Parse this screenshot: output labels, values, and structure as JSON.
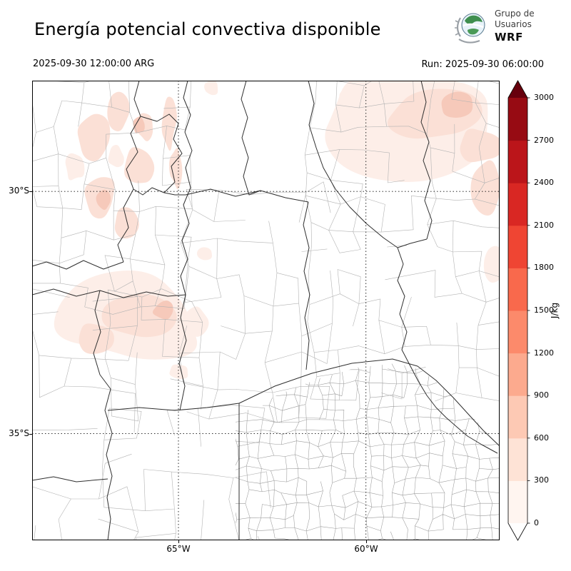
{
  "header": {
    "title": "Energía potencial convectiva disponible",
    "valid_time": "2025-09-30 12:00:00 ARG",
    "run_label": "Run: 2025-09-30 06:00:00"
  },
  "logo": {
    "line1": "Grupo de",
    "line2": "Usuarios",
    "line3": "WRF"
  },
  "axes": {
    "lat_ticks": [
      {
        "label": "30°S",
        "frac": 0.241
      },
      {
        "label": "35°S",
        "frac": 0.768
      }
    ],
    "lon_ticks": [
      {
        "label": "65°W",
        "frac": 0.313
      },
      {
        "label": "60°W",
        "frac": 0.714
      }
    ]
  },
  "colorbar": {
    "unit": "J/kg",
    "ticks": [
      0,
      300,
      600,
      900,
      1200,
      1500,
      1800,
      2100,
      2400,
      2700,
      3000
    ],
    "colors_low_to_high": [
      "#ffffff",
      "#fff5f0",
      "#fee3d6",
      "#fdc9b4",
      "#fcaa8e",
      "#fc8a6b",
      "#f9694c",
      "#ef4533",
      "#d92723",
      "#bb151a",
      "#970b13",
      "#67000d"
    ]
  },
  "colors": {
    "background": "#ffffff",
    "frame": "#000000",
    "gridline": "#111111",
    "province_line": "#2f2f2f",
    "county_line": "#b3b3b3",
    "county_line_dense": "#9a9a9a",
    "cape_shading_faint": "#fdeee8",
    "cape_shading_light": "#fbe0d6",
    "cape_shading_mid": "#f6c9ba"
  }
}
